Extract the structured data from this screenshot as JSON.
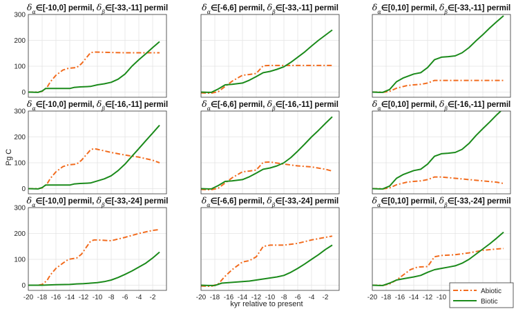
{
  "chart_data": {
    "type": "line",
    "xlabel": "kyr relative to present",
    "ylabel": "Pg C",
    "xlim": [
      -20,
      0
    ],
    "ylim": [
      -20,
      300
    ],
    "xticks": [
      -20,
      -18,
      -16,
      -14,
      -12,
      -10,
      -8,
      -6,
      -4,
      -2
    ],
    "yticks": [
      0,
      100,
      200,
      300
    ],
    "grid": true,
    "legend": {
      "position": "bottom-right",
      "entries": [
        {
          "label": "Abiotic",
          "color": "#f26b1d",
          "style": "dash-dot"
        },
        {
          "label": "Biotic",
          "color": "#1a8a1a",
          "style": "solid"
        }
      ]
    },
    "panels": [
      {
        "title": {
          "alpha_range": "[-10,0]",
          "beta_range": "[-33,-11]",
          "unit": "permil"
        },
        "series": [
          {
            "name": "Abiotic",
            "x": [
              -20,
              -18.6,
              -18,
              -17.3,
              -16.8,
              -16,
              -15,
              -14.2,
              -13,
              -12.3,
              -11,
              -10.5,
              -8,
              -6,
              -4,
              -2,
              -1
            ],
            "y": [
              0,
              0,
              3,
              18,
              40,
              65,
              85,
              92,
              95,
              110,
              152,
              155,
              153,
              152,
              152,
              152,
              152
            ]
          },
          {
            "name": "Biotic",
            "x": [
              -20,
              -18.6,
              -18,
              -17.5,
              -16,
              -15,
              -14,
              -13.4,
              -12.5,
              -11,
              -10,
              -9,
              -8,
              -7,
              -6,
              -5,
              -4,
              -3,
              -2,
              -1
            ],
            "y": [
              0,
              -1,
              4,
              14,
              14,
              14,
              14,
              18,
              20,
              22,
              28,
              32,
              38,
              50,
              70,
              100,
              125,
              148,
              172,
              195
            ]
          }
        ]
      },
      {
        "title": {
          "alpha_range": "[-6,6]",
          "beta_range": "[-33,-11]",
          "unit": "permil"
        },
        "series": [
          {
            "name": "Abiotic",
            "x": [
              -20,
              -19,
              -18.5,
              -17.5,
              -16.5,
              -15.5,
              -14,
              -13,
              -12,
              -11,
              -10,
              -8,
              -6,
              -4,
              -2,
              -1
            ],
            "y": [
              -3,
              -4,
              -4,
              2,
              22,
              42,
              65,
              68,
              72,
              102,
              103,
              103,
              103,
              103,
              103,
              103
            ]
          },
          {
            "name": "Biotic",
            "x": [
              -20,
              -19,
              -18.5,
              -17.5,
              -16.5,
              -15.5,
              -14,
              -13,
              -12,
              -11,
              -10,
              -9,
              -8,
              -7,
              -6,
              -5,
              -4,
              -3,
              -2,
              -1
            ],
            "y": [
              0,
              -1,
              -1,
              12,
              28,
              30,
              35,
              46,
              60,
              75,
              80,
              88,
              98,
              115,
              135,
              155,
              178,
              200,
              220,
              240
            ]
          }
        ]
      },
      {
        "title": {
          "alpha_range": "[0,10]",
          "beta_range": "[-33,-11]",
          "unit": "permil"
        },
        "series": [
          {
            "name": "Abiotic",
            "x": [
              -20,
              -19,
              -18.5,
              -17.5,
              -16.5,
              -15,
              -14,
              -13,
              -12,
              -11,
              -10,
              -8,
              -6,
              -4,
              -2,
              -1
            ],
            "y": [
              0,
              0,
              -1,
              3,
              15,
              25,
              28,
              30,
              35,
              45,
              45,
              45,
              45,
              45,
              45,
              45
            ]
          },
          {
            "name": "Biotic",
            "x": [
              -20,
              -19,
              -18.5,
              -17.5,
              -16.5,
              -15.5,
              -14,
              -13,
              -12,
              -11,
              -10,
              -9,
              -8,
              -7,
              -6,
              -5,
              -4,
              -3,
              -2,
              -1
            ],
            "y": [
              0,
              -1,
              -1,
              10,
              40,
              55,
              70,
              75,
              95,
              125,
              135,
              137,
              140,
              152,
              172,
              198,
              222,
              248,
              272,
              295
            ]
          }
        ]
      },
      {
        "title": {
          "alpha_range": "[-10,0]",
          "beta_range": "[-16,-11]",
          "unit": "permil"
        },
        "series": [
          {
            "name": "Abiotic",
            "x": [
              -20,
              -18.6,
              -18,
              -17.3,
              -16.8,
              -16,
              -15,
              -14.2,
              -13,
              -12.3,
              -11,
              -10.5,
              -10,
              -8,
              -6,
              -4,
              -2,
              -1
            ],
            "y": [
              0,
              0,
              3,
              18,
              40,
              65,
              85,
              92,
              95,
              110,
              150,
              155,
              152,
              140,
              130,
              122,
              110,
              100
            ]
          },
          {
            "name": "Biotic",
            "x": [
              -20,
              -18.6,
              -18,
              -17.5,
              -16,
              -15,
              -14,
              -13.4,
              -12.5,
              -11,
              -10,
              -9,
              -8,
              -7,
              -6,
              -5,
              -4,
              -3,
              -2,
              -1
            ],
            "y": [
              0,
              -1,
              4,
              14,
              14,
              14,
              14,
              18,
              20,
              22,
              30,
              38,
              50,
              70,
              95,
              125,
              155,
              185,
              215,
              245
            ]
          }
        ]
      },
      {
        "title": {
          "alpha_range": "[-6,6]",
          "beta_range": "[-16,-11]",
          "unit": "permil"
        },
        "series": [
          {
            "name": "Abiotic",
            "x": [
              -20,
              -19,
              -18.5,
              -17.5,
              -16.5,
              -15.5,
              -14,
              -13,
              -12,
              -11,
              -10,
              -8,
              -6,
              -4,
              -2,
              -1
            ],
            "y": [
              -3,
              -4,
              -4,
              2,
              22,
              42,
              65,
              68,
              72,
              102,
              103,
              95,
              88,
              84,
              75,
              68
            ]
          },
          {
            "name": "Biotic",
            "x": [
              -20,
              -19,
              -18.5,
              -17.5,
              -16.5,
              -15.5,
              -14,
              -13,
              -12,
              -11,
              -10,
              -9,
              -8,
              -7,
              -6,
              -5,
              -4,
              -3,
              -2,
              -1
            ],
            "y": [
              0,
              -1,
              -1,
              12,
              28,
              30,
              35,
              46,
              60,
              75,
              80,
              88,
              100,
              120,
              145,
              172,
              200,
              225,
              252,
              278
            ]
          }
        ]
      },
      {
        "title": {
          "alpha_range": "[0,10]",
          "beta_range": "[-16,-11]",
          "unit": "permil"
        },
        "series": [
          {
            "name": "Abiotic",
            "x": [
              -20,
              -19,
              -18.5,
              -17.5,
              -16.5,
              -15,
              -14,
              -13,
              -12,
              -11,
              -10,
              -8,
              -6,
              -4,
              -2,
              -1
            ],
            "y": [
              0,
              0,
              -1,
              3,
              15,
              25,
              28,
              30,
              35,
              45,
              45,
              40,
              35,
              30,
              25,
              20
            ]
          },
          {
            "name": "Biotic",
            "x": [
              -20,
              -19,
              -18.5,
              -17.5,
              -16.5,
              -15.5,
              -14,
              -13,
              -12,
              -11,
              -10,
              -9,
              -8,
              -7,
              -6,
              -5,
              -4,
              -3,
              -2,
              -1.4
            ],
            "y": [
              0,
              -1,
              -1,
              10,
              40,
              55,
              70,
              75,
              95,
              125,
              135,
              137,
              140,
              152,
              175,
              205,
              232,
              258,
              285,
              300
            ]
          }
        ]
      },
      {
        "title": {
          "alpha_range": "[-10,0]",
          "beta_range": "[-33,-24]",
          "unit": "permil"
        },
        "series": [
          {
            "name": "Abiotic",
            "x": [
              -20,
              -18.6,
              -18,
              -17.3,
              -16.8,
              -16,
              -15,
              -14.2,
              -13,
              -12.3,
              -11,
              -10.5,
              -10,
              -8,
              -6,
              -4,
              -2,
              -1
            ],
            "y": [
              0,
              0,
              3,
              18,
              40,
              65,
              85,
              100,
              105,
              120,
              170,
              175,
              175,
              172,
              185,
              200,
              212,
              215
            ]
          },
          {
            "name": "Biotic",
            "x": [
              -20,
              -18,
              -16,
              -14,
              -13,
              -12,
              -11,
              -10,
              -9,
              -8,
              -7,
              -6,
              -5,
              -4,
              -3,
              -2,
              -1
            ],
            "y": [
              0,
              0,
              2,
              3,
              5,
              6,
              8,
              10,
              14,
              20,
              30,
              42,
              55,
              70,
              85,
              105,
              128
            ]
          }
        ]
      },
      {
        "title": {
          "alpha_range": "[-6,6]",
          "beta_range": "[-33,-24]",
          "unit": "permil"
        },
        "series": [
          {
            "name": "Abiotic",
            "x": [
              -20,
              -19,
              -18.5,
              -17.5,
              -16.5,
              -15.5,
              -14,
              -13,
              -12,
              -11,
              -10,
              -8,
              -6,
              -4,
              -2,
              -1
            ],
            "y": [
              -3,
              -4,
              -4,
              5,
              35,
              60,
              90,
              95,
              110,
              150,
              155,
              155,
              162,
              175,
              185,
              190
            ]
          },
          {
            "name": "Biotic",
            "x": [
              -20,
              -19,
              -18,
              -17,
              -16,
              -15,
              -14,
              -13,
              -12,
              -11,
              -10,
              -9,
              -8,
              -7,
              -6,
              -5,
              -4,
              -3,
              -2,
              -1
            ],
            "y": [
              0,
              -1,
              -1,
              8,
              10,
              12,
              14,
              16,
              20,
              24,
              28,
              32,
              38,
              50,
              65,
              82,
              100,
              118,
              138,
              155
            ]
          }
        ]
      },
      {
        "title": {
          "alpha_range": "[0,10]",
          "beta_range": "[-33,-24]",
          "unit": "permil"
        },
        "series": [
          {
            "name": "Abiotic",
            "x": [
              -20,
              -19,
              -18.5,
              -17.5,
              -16.5,
              -15.5,
              -14.5,
              -13.5,
              -12,
              -11,
              -10,
              -8,
              -6,
              -4,
              -2,
              -1
            ],
            "y": [
              0,
              0,
              -1,
              5,
              20,
              40,
              60,
              70,
              72,
              110,
              115,
              118,
              125,
              135,
              140,
              142
            ]
          },
          {
            "name": "Biotic",
            "x": [
              -20,
              -19,
              -18.5,
              -17.5,
              -16.5,
              -15.5,
              -14,
              -13,
              -12,
              -11,
              -10,
              -9,
              -8,
              -7,
              -6,
              -5,
              -4,
              -3,
              -2,
              -1
            ],
            "y": [
              0,
              -1,
              -1,
              8,
              20,
              25,
              32,
              38,
              50,
              60,
              65,
              70,
              75,
              85,
              100,
              120,
              140,
              160,
              182,
              205
            ]
          }
        ]
      }
    ]
  }
}
